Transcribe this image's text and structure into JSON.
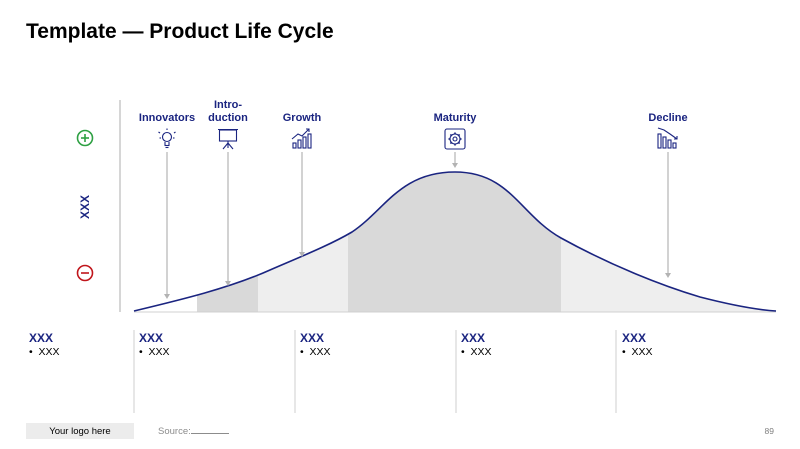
{
  "title": "Template — Product Life Cycle",
  "y_axis": {
    "label": "XXX",
    "top_symbol": "+",
    "bottom_symbol": "−",
    "top_color": "#2ea043",
    "bottom_color": "#c0151b"
  },
  "stages": [
    {
      "label": "Innovators",
      "icon": "lightbulb-icon"
    },
    {
      "label": "Intro-\nduction",
      "icon": "presentation-board-icon"
    },
    {
      "label": "Growth",
      "icon": "bar-chart-growth-icon"
    },
    {
      "label": "Maturity",
      "icon": "gear-icon"
    },
    {
      "label": "Decline",
      "icon": "bar-chart-decline-icon"
    }
  ],
  "columns": [
    {
      "title": "XXX",
      "bullet": "XXX"
    },
    {
      "title": "XXX",
      "bullet": "XXX"
    },
    {
      "title": "XXX",
      "bullet": "XXX"
    },
    {
      "title": "XXX",
      "bullet": "XXX"
    },
    {
      "title": "XXX",
      "bullet": "XXX"
    }
  ],
  "footer": {
    "logo_text": "Your logo here",
    "source_label": "Source:",
    "page_number": "89"
  },
  "colors": {
    "curve": "#1a2480",
    "accent": "#1a2480",
    "shade_dark": "#d9d9d9",
    "shade_light": "#eeeeee",
    "arrow": "#b3b3b3"
  }
}
